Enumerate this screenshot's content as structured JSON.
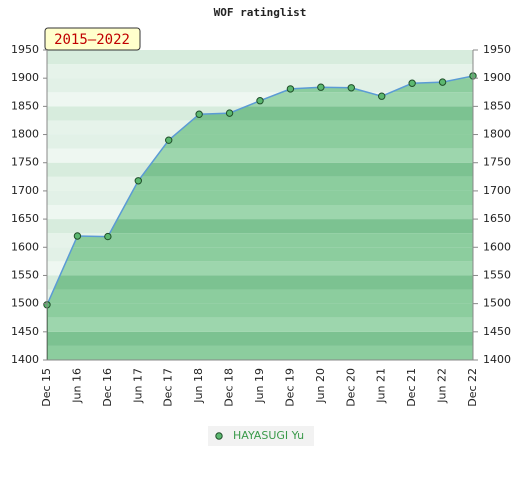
{
  "chart_data": {
    "type": "line",
    "title": "WOF ratinglist",
    "annotation": "2015–2022",
    "categories": [
      "Dec 15",
      "Jun 16",
      "Dec 16",
      "Jun 17",
      "Dec 17",
      "Jun 18",
      "Dec 18",
      "Jun 19",
      "Dec 19",
      "Jun 20",
      "Dec 20",
      "Jun 21",
      "Dec 21",
      "Jun 22",
      "Dec 22"
    ],
    "series": [
      {
        "name": "HAYASUGI Yu",
        "color": "#5cb870",
        "values": [
          1498,
          1620,
          1619,
          1718,
          1790,
          1836,
          1838,
          1860,
          1881,
          1884,
          1883,
          1868,
          1891,
          1893,
          1904
        ]
      }
    ],
    "ylim": [
      1400,
      1950
    ],
    "yticks": [
      1400,
      1450,
      1500,
      1550,
      1600,
      1650,
      1700,
      1750,
      1800,
      1850,
      1900,
      1950
    ],
    "y2lim": [
      1400,
      1950
    ],
    "y2ticks": [
      1400,
      1450,
      1500,
      1550,
      1600,
      1650,
      1700,
      1750,
      1800,
      1850,
      1900,
      1950
    ],
    "legend": "bottom"
  }
}
